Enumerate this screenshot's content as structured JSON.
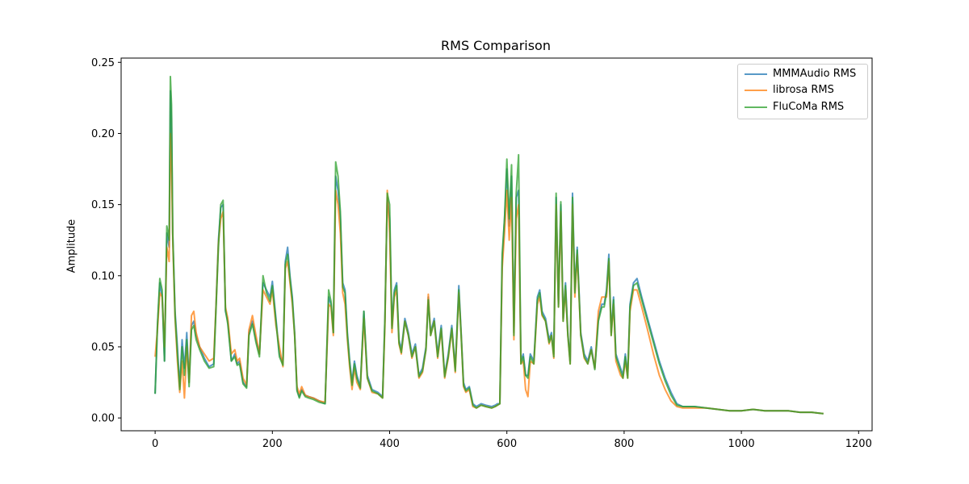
{
  "chart_data": {
    "type": "line",
    "title": "RMS Comparison",
    "xlabel": "",
    "ylabel": "Amplitude",
    "xlim": [
      -58,
      1223
    ],
    "ylim": [
      -0.009,
      0.253
    ],
    "xticks": [
      0,
      200,
      400,
      600,
      800,
      1000,
      1200
    ],
    "yticks": [
      0.0,
      0.05,
      0.1,
      0.15,
      0.2,
      0.25
    ],
    "ytick_labels": [
      "0.00",
      "0.05",
      "0.10",
      "0.15",
      "0.20",
      "0.25"
    ],
    "grid": false,
    "legend_position": "upper right",
    "x": [
      0,
      4,
      8,
      12,
      16,
      20,
      24,
      26,
      28,
      30,
      34,
      38,
      42,
      46,
      50,
      54,
      58,
      62,
      66,
      70,
      76,
      84,
      92,
      100,
      104,
      108,
      112,
      116,
      120,
      124,
      130,
      136,
      140,
      144,
      150,
      156,
      160,
      166,
      172,
      178,
      184,
      190,
      196,
      200,
      206,
      212,
      218,
      222,
      226,
      230,
      234,
      238,
      242,
      246,
      250,
      256,
      262,
      270,
      280,
      290,
      296,
      300,
      304,
      308,
      312,
      316,
      320,
      324,
      328,
      332,
      336,
      340,
      344,
      350,
      356,
      362,
      370,
      380,
      388,
      392,
      396,
      400,
      404,
      408,
      412,
      416,
      420,
      426,
      432,
      438,
      444,
      450,
      456,
      462,
      466,
      470,
      476,
      482,
      488,
      494,
      500,
      506,
      512,
      518,
      522,
      526,
      530,
      536,
      542,
      548,
      556,
      564,
      574,
      580,
      584,
      588,
      592,
      596,
      600,
      604,
      608,
      612,
      616,
      620,
      624,
      628,
      632,
      636,
      640,
      646,
      652,
      656,
      660,
      666,
      672,
      676,
      680,
      684,
      688,
      692,
      696,
      700,
      704,
      708,
      712,
      716,
      720,
      726,
      732,
      738,
      744,
      750,
      756,
      762,
      766,
      770,
      774,
      778,
      782,
      786,
      790,
      794,
      798,
      802,
      806,
      810,
      816,
      822,
      830,
      840,
      850,
      860,
      870,
      880,
      890,
      900,
      920,
      940,
      960,
      980,
      1000,
      1020,
      1040,
      1060,
      1080,
      1100,
      1120,
      1140,
      1165
    ],
    "series": [
      {
        "name": "MMMAudio RMS",
        "color": "#1f77b4",
        "values": [
          0.017,
          0.065,
          0.095,
          0.085,
          0.04,
          0.13,
          0.12,
          0.23,
          0.21,
          0.13,
          0.075,
          0.05,
          0.022,
          0.055,
          0.035,
          0.06,
          0.025,
          0.065,
          0.068,
          0.058,
          0.05,
          0.042,
          0.036,
          0.038,
          0.08,
          0.125,
          0.148,
          0.15,
          0.075,
          0.068,
          0.04,
          0.045,
          0.038,
          0.04,
          0.025,
          0.022,
          0.06,
          0.068,
          0.055,
          0.045,
          0.095,
          0.09,
          0.085,
          0.096,
          0.07,
          0.045,
          0.038,
          0.11,
          0.12,
          0.1,
          0.085,
          0.06,
          0.02,
          0.015,
          0.02,
          0.016,
          0.015,
          0.014,
          0.012,
          0.01,
          0.085,
          0.08,
          0.06,
          0.17,
          0.16,
          0.14,
          0.095,
          0.09,
          0.06,
          0.04,
          0.025,
          0.04,
          0.03,
          0.022,
          0.075,
          0.03,
          0.02,
          0.018,
          0.015,
          0.07,
          0.155,
          0.14,
          0.065,
          0.09,
          0.095,
          0.055,
          0.048,
          0.07,
          0.06,
          0.045,
          0.052,
          0.03,
          0.035,
          0.05,
          0.085,
          0.06,
          0.07,
          0.045,
          0.065,
          0.03,
          0.045,
          0.065,
          0.035,
          0.093,
          0.06,
          0.025,
          0.02,
          0.022,
          0.01,
          0.008,
          0.01,
          0.009,
          0.008,
          0.009,
          0.01,
          0.01,
          0.11,
          0.14,
          0.175,
          0.135,
          0.17,
          0.06,
          0.155,
          0.16,
          0.04,
          0.045,
          0.03,
          0.03,
          0.045,
          0.04,
          0.085,
          0.09,
          0.075,
          0.07,
          0.055,
          0.06,
          0.045,
          0.155,
          0.08,
          0.15,
          0.07,
          0.095,
          0.06,
          0.04,
          0.158,
          0.09,
          0.12,
          0.06,
          0.045,
          0.04,
          0.05,
          0.035,
          0.07,
          0.08,
          0.08,
          0.09,
          0.115,
          0.06,
          0.085,
          0.045,
          0.04,
          0.035,
          0.03,
          0.045,
          0.03,
          0.08,
          0.095,
          0.098,
          0.085,
          0.07,
          0.055,
          0.04,
          0.028,
          0.018,
          0.01,
          0.008,
          0.008,
          0.007,
          0.006,
          0.005,
          0.005,
          0.006,
          0.005,
          0.005,
          0.005,
          0.004,
          0.004,
          0.003
        ]
      },
      {
        "name": "librosa RMS",
        "color": "#ff7f0e",
        "values": [
          0.043,
          0.062,
          0.088,
          0.085,
          0.05,
          0.12,
          0.11,
          0.2,
          0.18,
          0.125,
          0.07,
          0.04,
          0.018,
          0.04,
          0.014,
          0.05,
          0.025,
          0.072,
          0.075,
          0.06,
          0.05,
          0.045,
          0.04,
          0.042,
          0.08,
          0.123,
          0.14,
          0.145,
          0.078,
          0.07,
          0.045,
          0.048,
          0.04,
          0.042,
          0.028,
          0.023,
          0.062,
          0.072,
          0.058,
          0.045,
          0.09,
          0.085,
          0.08,
          0.09,
          0.065,
          0.05,
          0.036,
          0.105,
          0.11,
          0.095,
          0.08,
          0.058,
          0.022,
          0.017,
          0.022,
          0.016,
          0.015,
          0.014,
          0.012,
          0.011,
          0.08,
          0.078,
          0.058,
          0.16,
          0.15,
          0.13,
          0.088,
          0.08,
          0.055,
          0.035,
          0.02,
          0.035,
          0.025,
          0.02,
          0.07,
          0.028,
          0.018,
          0.017,
          0.014,
          0.065,
          0.16,
          0.13,
          0.06,
          0.085,
          0.09,
          0.052,
          0.045,
          0.068,
          0.058,
          0.042,
          0.05,
          0.028,
          0.032,
          0.048,
          0.087,
          0.058,
          0.068,
          0.042,
          0.062,
          0.028,
          0.042,
          0.062,
          0.032,
          0.088,
          0.058,
          0.022,
          0.018,
          0.02,
          0.008,
          0.007,
          0.009,
          0.008,
          0.007,
          0.008,
          0.009,
          0.01,
          0.105,
          0.13,
          0.16,
          0.125,
          0.155,
          0.055,
          0.14,
          0.15,
          0.038,
          0.04,
          0.02,
          0.015,
          0.04,
          0.038,
          0.08,
          0.085,
          0.072,
          0.068,
          0.052,
          0.058,
          0.042,
          0.15,
          0.078,
          0.145,
          0.068,
          0.09,
          0.058,
          0.038,
          0.15,
          0.085,
          0.115,
          0.058,
          0.042,
          0.038,
          0.048,
          0.035,
          0.075,
          0.085,
          0.085,
          0.085,
          0.11,
          0.058,
          0.08,
          0.04,
          0.035,
          0.03,
          0.028,
          0.04,
          0.028,
          0.075,
          0.09,
          0.09,
          0.078,
          0.062,
          0.045,
          0.03,
          0.02,
          0.012,
          0.008,
          0.007,
          0.007,
          0.007,
          0.006,
          0.005,
          0.005,
          0.006,
          0.005,
          0.005,
          0.005,
          0.004,
          0.004,
          0.003
        ]
      },
      {
        "name": "FluCoMa RMS",
        "color": "#2ca02c",
        "values": [
          0.017,
          0.065,
          0.098,
          0.09,
          0.04,
          0.135,
          0.125,
          0.24,
          0.22,
          0.13,
          0.072,
          0.045,
          0.02,
          0.05,
          0.03,
          0.055,
          0.022,
          0.062,
          0.065,
          0.055,
          0.048,
          0.04,
          0.035,
          0.036,
          0.078,
          0.12,
          0.15,
          0.153,
          0.076,
          0.066,
          0.04,
          0.043,
          0.037,
          0.038,
          0.024,
          0.021,
          0.058,
          0.066,
          0.053,
          0.043,
          0.1,
          0.088,
          0.082,
          0.093,
          0.068,
          0.043,
          0.037,
          0.108,
          0.115,
          0.098,
          0.083,
          0.058,
          0.019,
          0.014,
          0.019,
          0.015,
          0.014,
          0.013,
          0.011,
          0.01,
          0.09,
          0.082,
          0.06,
          0.18,
          0.17,
          0.145,
          0.092,
          0.088,
          0.058,
          0.038,
          0.023,
          0.038,
          0.028,
          0.021,
          0.075,
          0.028,
          0.019,
          0.017,
          0.014,
          0.07,
          0.158,
          0.15,
          0.063,
          0.088,
          0.093,
          0.053,
          0.046,
          0.068,
          0.058,
          0.043,
          0.05,
          0.029,
          0.033,
          0.048,
          0.083,
          0.058,
          0.068,
          0.043,
          0.063,
          0.029,
          0.043,
          0.063,
          0.033,
          0.09,
          0.058,
          0.023,
          0.019,
          0.021,
          0.009,
          0.007,
          0.009,
          0.008,
          0.007,
          0.008,
          0.009,
          0.01,
          0.115,
          0.14,
          0.182,
          0.14,
          0.178,
          0.058,
          0.158,
          0.185,
          0.038,
          0.043,
          0.03,
          0.028,
          0.043,
          0.038,
          0.083,
          0.088,
          0.073,
          0.068,
          0.053,
          0.058,
          0.043,
          0.158,
          0.078,
          0.152,
          0.068,
          0.093,
          0.058,
          0.038,
          0.155,
          0.088,
          0.118,
          0.058,
          0.043,
          0.038,
          0.048,
          0.034,
          0.068,
          0.078,
          0.078,
          0.088,
          0.112,
          0.058,
          0.083,
          0.043,
          0.038,
          0.033,
          0.028,
          0.043,
          0.028,
          0.078,
          0.093,
          0.095,
          0.083,
          0.068,
          0.053,
          0.038,
          0.026,
          0.016,
          0.009,
          0.008,
          0.008,
          0.007,
          0.006,
          0.005,
          0.005,
          0.006,
          0.005,
          0.005,
          0.005,
          0.004,
          0.004,
          0.003
        ]
      }
    ]
  },
  "legend": {
    "items": [
      {
        "label": "MMMAudio RMS",
        "color": "#1f77b4"
      },
      {
        "label": "librosa RMS",
        "color": "#ff7f0e"
      },
      {
        "label": "FluCoMa RMS",
        "color": "#2ca02c"
      }
    ]
  }
}
